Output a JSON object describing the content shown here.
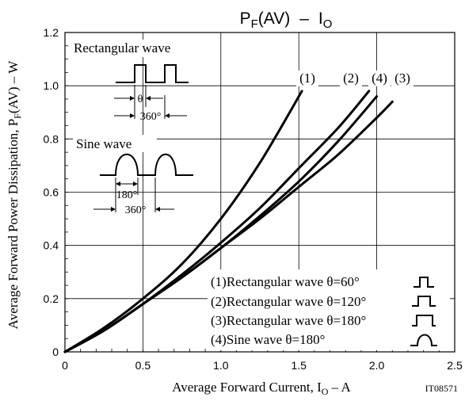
{
  "chart_data": {
    "type": "line",
    "title_main": "P",
    "title_main_sub": "F",
    "title_main_rest": "(AV)",
    "title_dash": "–",
    "title_io": "I",
    "title_io_sub": "O",
    "xlabel_pre": "Average Forward Current, I",
    "xlabel_sub": "O",
    "xlabel_post": " – A",
    "ylabel_pre": "Average Forward Power Dissipation, P",
    "ylabel_sub": "F",
    "ylabel_post": "(AV) – W",
    "figure_code": "IT08571",
    "xlim": [
      0,
      2.5
    ],
    "ylim": [
      0,
      1.2
    ],
    "x_ticks": [
      "0",
      "0.5",
      "1.0",
      "1.5",
      "2.0",
      "2.5"
    ],
    "y_ticks": [
      "0",
      "0.2",
      "0.4",
      "0.6",
      "0.8",
      "1.0",
      "1.2"
    ],
    "grid": true,
    "series": [
      {
        "name": "(1)",
        "x": [
          0,
          0.25,
          0.5,
          0.75,
          1.0,
          1.25,
          1.52
        ],
        "y": [
          0,
          0.09,
          0.2,
          0.33,
          0.5,
          0.71,
          0.98
        ]
      },
      {
        "name": "(2)",
        "x": [
          0,
          0.25,
          0.5,
          0.75,
          1.0,
          1.25,
          1.5,
          1.75,
          1.95
        ],
        "y": [
          0,
          0.08,
          0.18,
          0.29,
          0.41,
          0.54,
          0.69,
          0.84,
          0.98
        ]
      },
      {
        "name": "(3)",
        "x": [
          0,
          0.25,
          0.5,
          0.75,
          1.0,
          1.25,
          1.5,
          1.75,
          2.0,
          2.1
        ],
        "y": [
          0,
          0.08,
          0.18,
          0.28,
          0.39,
          0.5,
          0.62,
          0.74,
          0.88,
          0.94
        ]
      },
      {
        "name": "(4)",
        "x": [
          0,
          0.25,
          0.5,
          0.75,
          1.0,
          1.25,
          1.5,
          1.75,
          2.0
        ],
        "y": [
          0,
          0.08,
          0.18,
          0.28,
          0.39,
          0.51,
          0.64,
          0.79,
          0.96
        ]
      }
    ],
    "legend_entries": [
      "(1)Rectangular wave θ=60°",
      "(2)Rectangular wave θ=120°",
      "(3)Rectangular wave θ=180°",
      "(4)Sine wave θ=180°"
    ],
    "inset_rect_title": "Rectangular wave",
    "inset_rect_theta": "θ",
    "inset_rect_period": "360°",
    "inset_sine_title": "Sine wave",
    "inset_sine_conduction": "180°",
    "inset_sine_period": "360°"
  }
}
